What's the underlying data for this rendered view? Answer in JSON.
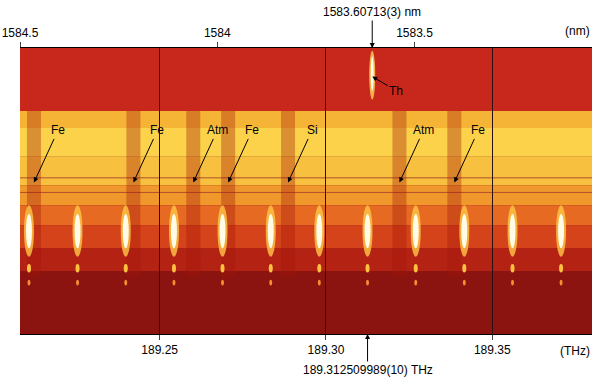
{
  "chart_data": {
    "type": "spectrum",
    "x_label": "(THz)",
    "x2_label": "(nm)",
    "xlim": [
      189.208,
      189.38
    ],
    "xticks": [
      {
        "value": 189.25,
        "label": "189.25"
      },
      {
        "value": 189.3,
        "label": "189.30"
      },
      {
        "value": 189.35,
        "label": "189.35"
      }
    ],
    "x2lim": [
      1584.5,
      1583.05
    ],
    "x2ticks": [
      1584.5,
      1584,
      1583.5
    ],
    "grid": true,
    "comb_lines": [
      189.2107,
      189.2253,
      189.2398,
      189.2543,
      189.2689,
      189.2834,
      189.298,
      189.3125,
      189.327,
      189.3416,
      189.3561,
      189.3707
    ],
    "absorption_lines": [
      {
        "label": "Fe",
        "x": 189.2122
      },
      {
        "label": "Fe",
        "x": 189.2421
      },
      {
        "label": "Atm",
        "x": 189.2601
      },
      {
        "label": "Fe",
        "x": 189.2706
      },
      {
        "label": "Si",
        "x": 189.2886
      },
      {
        "label": "Atm",
        "x": 189.3221
      },
      {
        "label": "Fe",
        "x": 189.3386
      }
    ],
    "reference_line": {
      "label": "Th",
      "x2": 1583.60713
    },
    "annotations": [
      {
        "text": "1583.60713(3) nm",
        "x2": 1583.60713
      },
      {
        "text": "189.312509989(10) THz",
        "x": 189.312509989
      }
    ]
  }
}
